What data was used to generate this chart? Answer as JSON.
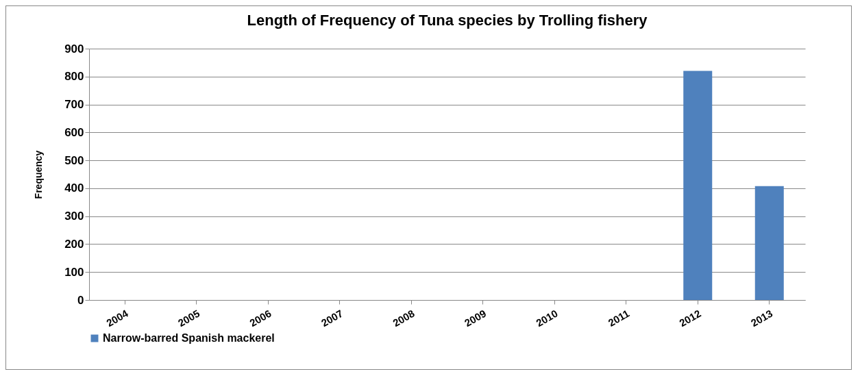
{
  "chart_data": {
    "type": "bar",
    "title": "Length of  Frequency of Tuna species by Trolling  fishery",
    "ylabel": "Frequency",
    "categories": [
      "2004",
      "2005",
      "2006",
      "2007",
      "2008",
      "2009",
      "2010",
      "2011",
      "2012",
      "2013"
    ],
    "series": [
      {
        "name": "Narrow-barred  Spanish mackerel",
        "color": "#4f81bd",
        "values": [
          null,
          null,
          null,
          null,
          null,
          null,
          null,
          null,
          820,
          408
        ]
      }
    ],
    "ylim": [
      0,
      900
    ],
    "yticks": [
      0,
      100,
      200,
      300,
      400,
      500,
      600,
      700,
      800,
      900
    ],
    "grid": "y",
    "legend": "bottom"
  }
}
